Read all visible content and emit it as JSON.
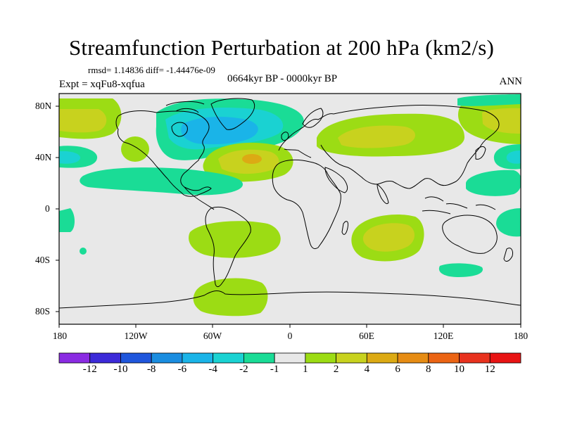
{
  "title": "Streamfunction Perturbation at 200 hPa (km2/s)",
  "stats": "rmsd= 1.14836 diff= -1.44476e-09",
  "period": "0664kyr BP - 0000kyr BP",
  "experiment": "Expt = xqFu8-xqfua",
  "season": "ANN",
  "lat_labels": [
    "80N",
    "40N",
    "0",
    "40S",
    "80S"
  ],
  "lon_labels": [
    "180",
    "120W",
    "60W",
    "0",
    "60E",
    "120E",
    "180"
  ],
  "colorbar": {
    "labels": [
      "-12",
      "-10",
      "-8",
      "-6",
      "-4",
      "-2",
      "-1",
      "1",
      "2",
      "4",
      "6",
      "8",
      "10",
      "12"
    ],
    "colors": [
      "#8a2be2",
      "#3c2ad8",
      "#1f56dc",
      "#1a8de0",
      "#1ab4e8",
      "#1ad2d2",
      "#1adc96",
      "#e8e8e8",
      "#9cdc14",
      "#c8d21e",
      "#dcaa14",
      "#e68c14",
      "#eb6414",
      "#e8321e",
      "#e81414"
    ]
  },
  "legend_meaning": "colored contours of streamfunction perturbation over world coastline map",
  "colors": {
    "background": "#e8e8e8",
    "neg1": "#1adc96",
    "neg2": "#1ad2d2",
    "neg4": "#1ab4e8",
    "pos1": "#9cdc14",
    "pos2": "#c8d21e",
    "pos4": "#dcaa14",
    "pos6": "#e68c14"
  }
}
